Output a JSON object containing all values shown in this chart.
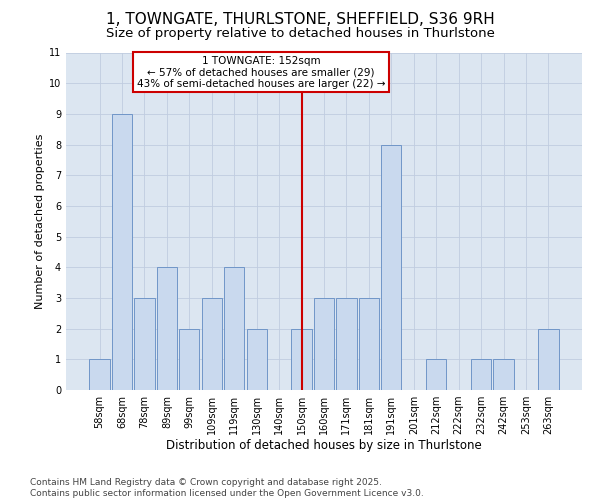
{
  "title1": "1, TOWNGATE, THURLSTONE, SHEFFIELD, S36 9RH",
  "title2": "Size of property relative to detached houses in Thurlstone",
  "xlabel": "Distribution of detached houses by size in Thurlstone",
  "ylabel": "Number of detached properties",
  "categories": [
    "58sqm",
    "68sqm",
    "78sqm",
    "89sqm",
    "99sqm",
    "109sqm",
    "119sqm",
    "130sqm",
    "140sqm",
    "150sqm",
    "160sqm",
    "171sqm",
    "181sqm",
    "191sqm",
    "201sqm",
    "212sqm",
    "222sqm",
    "232sqm",
    "242sqm",
    "253sqm",
    "263sqm"
  ],
  "values": [
    1,
    9,
    3,
    4,
    2,
    3,
    4,
    2,
    0,
    2,
    3,
    3,
    3,
    8,
    0,
    1,
    0,
    1,
    1,
    0,
    2
  ],
  "bar_color": "#c9d9ee",
  "bar_edge_color": "#7096c8",
  "reference_line_index": 9,
  "reference_line_color": "#cc0000",
  "annotation_text": "1 TOWNGATE: 152sqm\n← 57% of detached houses are smaller (29)\n43% of semi-detached houses are larger (22) →",
  "annotation_box_color": "#cc0000",
  "ylim": [
    0,
    11
  ],
  "yticks": [
    0,
    1,
    2,
    3,
    4,
    5,
    6,
    7,
    8,
    9,
    10,
    11
  ],
  "grid_color": "#c0cce0",
  "bg_color": "#dce6f1",
  "footer_text": "Contains HM Land Registry data © Crown copyright and database right 2025.\nContains public sector information licensed under the Open Government Licence v3.0.",
  "title1_fontsize": 11,
  "title2_fontsize": 9.5,
  "xlabel_fontsize": 8.5,
  "ylabel_fontsize": 8,
  "tick_fontsize": 7,
  "annotation_fontsize": 7.5,
  "footer_fontsize": 6.5
}
